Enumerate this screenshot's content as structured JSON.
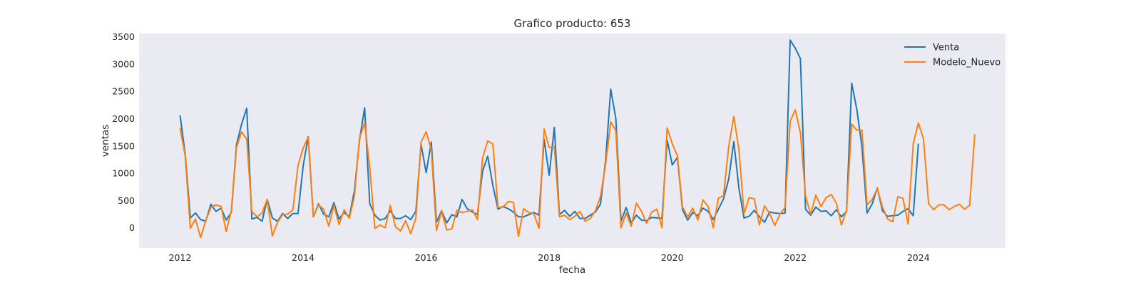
{
  "chart_data": {
    "type": "line",
    "title": "Grafico producto: 653",
    "xlabel": "fecha",
    "ylabel": "ventas",
    "x_start": "2012-01",
    "xlim": [
      "2011-05",
      "2025-06"
    ],
    "ylim": [
      -370,
      3560
    ],
    "xticks": [
      {
        "date": "2012-01",
        "label": "2012"
      },
      {
        "date": "2014-01",
        "label": "2014"
      },
      {
        "date": "2016-01",
        "label": "2016"
      },
      {
        "date": "2018-01",
        "label": "2018"
      },
      {
        "date": "2020-01",
        "label": "2020"
      },
      {
        "date": "2022-01",
        "label": "2022"
      },
      {
        "date": "2024-01",
        "label": "2024"
      }
    ],
    "yticks": [
      0,
      500,
      1000,
      1500,
      2000,
      2500,
      3000,
      3500
    ],
    "grid": false,
    "background": "#eaeaf2",
    "legend": {
      "location": "top-right"
    },
    "series": [
      {
        "name": "Venta",
        "color": "#1f77b4",
        "values": [
          2060,
          1350,
          180,
          270,
          150,
          120,
          430,
          300,
          360,
          140,
          280,
          1520,
          1900,
          2190,
          160,
          190,
          120,
          520,
          180,
          120,
          260,
          170,
          260,
          260,
          1130,
          1670,
          200,
          440,
          250,
          200,
          460,
          160,
          280,
          200,
          680,
          1600,
          2200,
          440,
          230,
          140,
          170,
          310,
          170,
          170,
          220,
          150,
          300,
          1530,
          1010,
          1570,
          100,
          310,
          90,
          240,
          200,
          520,
          350,
          290,
          240,
          1040,
          1310,
          780,
          340,
          390,
          350,
          290,
          200,
          200,
          240,
          280,
          230,
          1620,
          960,
          1840,
          240,
          320,
          210,
          300,
          170,
          170,
          230,
          290,
          430,
          1230,
          2540,
          2000,
          120,
          370,
          90,
          230,
          140,
          130,
          190,
          180,
          170,
          1610,
          1150,
          1290,
          330,
          140,
          280,
          220,
          360,
          300,
          150,
          340,
          530,
          890,
          1580,
          720,
          180,
          210,
          320,
          200,
          100,
          290,
          270,
          260,
          270,
          3440,
          3290,
          3100,
          340,
          230,
          380,
          300,
          310,
          220,
          330,
          200,
          300,
          2650,
          2170,
          1480,
          270,
          440,
          730,
          310,
          210,
          220,
          230,
          300,
          350,
          220,
          1540
        ]
      },
      {
        "name": "Modelo_Nuevo",
        "color": "#ff7f0e",
        "values": [
          1830,
          1320,
          -10,
          160,
          -180,
          130,
          370,
          420,
          390,
          -70,
          320,
          1470,
          1760,
          1620,
          300,
          200,
          270,
          520,
          -150,
          100,
          240,
          250,
          330,
          1140,
          1460,
          1660,
          200,
          420,
          340,
          30,
          410,
          60,
          330,
          170,
          580,
          1640,
          1920,
          1100,
          -10,
          50,
          0,
          410,
          20,
          -60,
          130,
          -110,
          180,
          1570,
          1760,
          1430,
          -50,
          300,
          -40,
          -20,
          320,
          280,
          300,
          330,
          150,
          1280,
          1590,
          1540,
          370,
          380,
          480,
          470,
          -160,
          350,
          280,
          260,
          -10,
          1810,
          1470,
          1490,
          200,
          230,
          150,
          210,
          300,
          120,
          170,
          310,
          570,
          1160,
          1940,
          1780,
          0,
          270,
          30,
          450,
          300,
          80,
          290,
          340,
          0,
          1830,
          1540,
          1320,
          380,
          200,
          360,
          140,
          510,
          390,
          0,
          540,
          590,
          1480,
          2040,
          1430,
          260,
          550,
          530,
          50,
          400,
          260,
          40,
          250,
          370,
          1950,
          2160,
          1740,
          580,
          250,
          600,
          390,
          550,
          610,
          450,
          50,
          320,
          1900,
          1790,
          1790,
          420,
          520,
          720,
          380,
          160,
          110,
          570,
          540,
          70,
          1540,
          1920,
          1630,
          440,
          330,
          420,
          420,
          330,
          390,
          430,
          340,
          410,
          1710
        ]
      }
    ]
  }
}
